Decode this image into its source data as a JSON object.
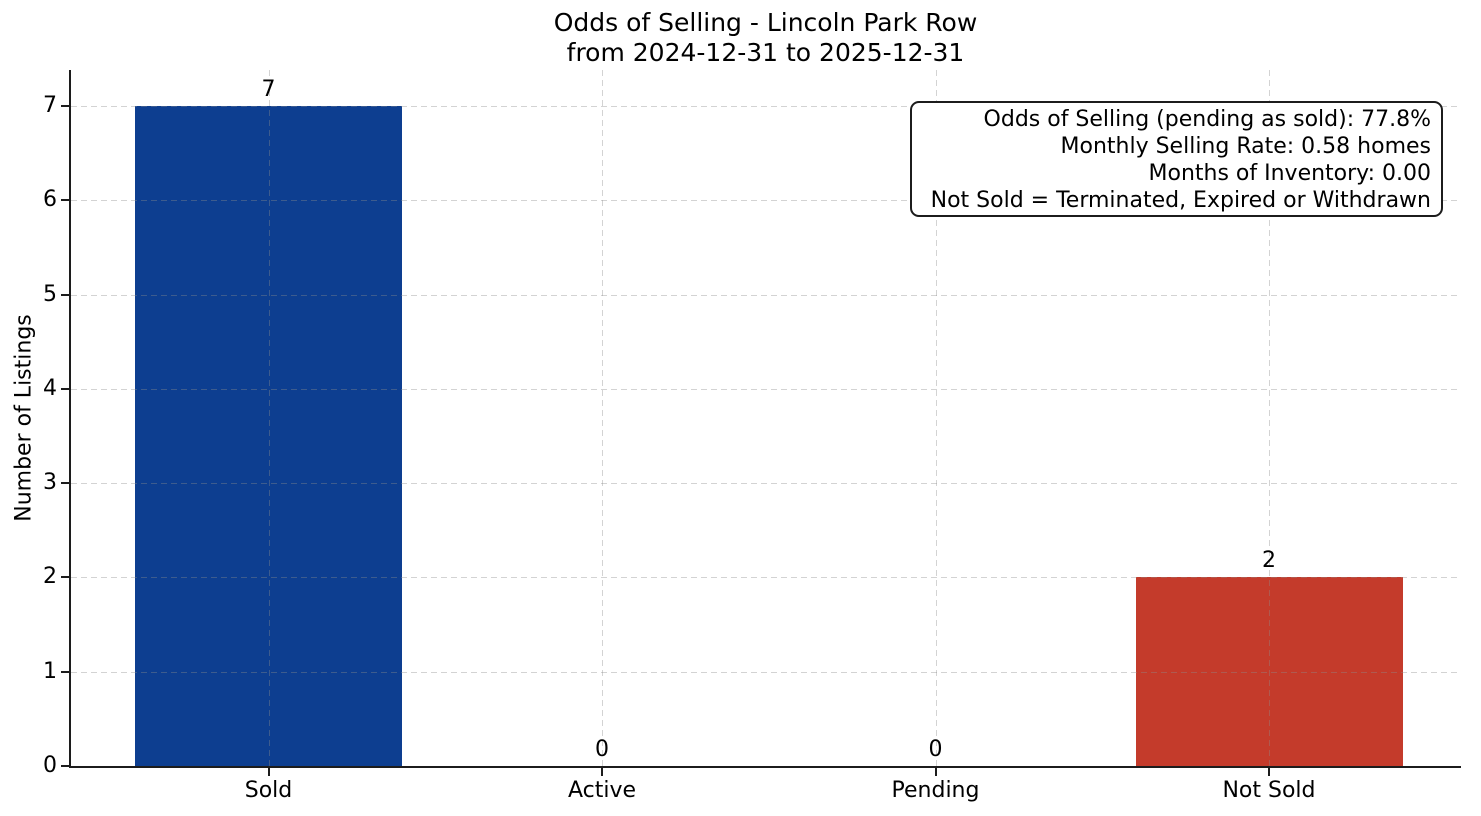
{
  "chart_data": {
    "type": "bar",
    "title_line1": "Odds of Selling - Lincoln Park Row",
    "title_line2": "from 2024-12-31 to 2025-12-31",
    "ylabel": "Number of Listings",
    "xlabel": "",
    "categories": [
      "Sold",
      "Active",
      "Pending",
      "Not Sold"
    ],
    "values": [
      7,
      0,
      0,
      2
    ],
    "value_labels": [
      "7",
      "0",
      "0",
      "2"
    ],
    "bar_colors": [
      "#0d3e90",
      null,
      null,
      "#c43b2b"
    ],
    "yticks": [
      0,
      1,
      2,
      3,
      4,
      5,
      6,
      7
    ],
    "ylim": [
      0,
      7.38
    ],
    "grid": "dashed, horizontal at integer y and vertical at category centers, drawn over bars",
    "legend_position": "none",
    "annotation": {
      "position": "top-right",
      "lines": [
        "Odds of Selling (pending as sold): 77.8%",
        "Monthly Selling Rate: 0.58 homes",
        "Months of Inventory: 0.00",
        "Not Sold = Terminated, Expired or Withdrawn"
      ]
    },
    "colors": {
      "sold_bar": "#0d3e90",
      "not_sold_bar": "#c43b2b",
      "axis": "#1c1c1c",
      "grid_over_white": "#d9d9d9",
      "background": "#ffffff",
      "text": "#000000"
    }
  }
}
